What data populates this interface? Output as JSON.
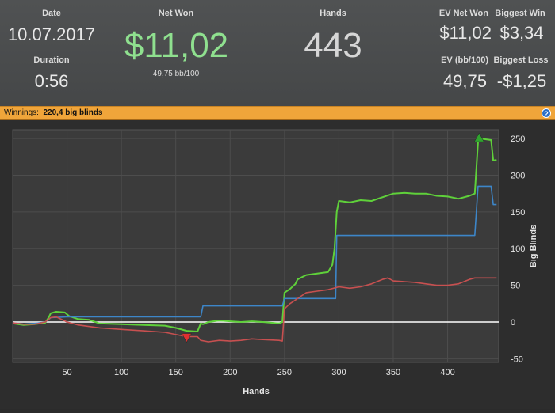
{
  "stats": {
    "date_label": "Date",
    "date_value": "10.07.2017",
    "duration_label": "Duration",
    "duration_value": "0:56",
    "net_won_label": "Net Won",
    "net_won_value": "$11,02",
    "bb100_value": "49,75 bb/100",
    "hands_label": "Hands",
    "hands_value": "443",
    "ev_net_won_label": "EV Net Won",
    "ev_net_won_value": "$11,02",
    "biggest_win_label": "Biggest Win",
    "biggest_win_value": "$3,34",
    "ev_bb100_label": "EV (bb/100)",
    "ev_bb100_value": "49,75",
    "biggest_loss_label": "Biggest Loss",
    "biggest_loss_value": "-$1,25",
    "net_won_color": "#8fe08f"
  },
  "bar": {
    "label": "Winnings:",
    "value": "220,4 big blinds",
    "help_glyph": "?",
    "help_icon": "help-icon"
  },
  "chart_data": {
    "type": "line",
    "xlabel": "Hands",
    "ylabel": "Big Blinds",
    "xlim": [
      0,
      447
    ],
    "ylim": [
      -55,
      262
    ],
    "x_ticks": [
      50,
      100,
      150,
      200,
      250,
      300,
      350,
      400
    ],
    "y_ticks": [
      -50,
      0,
      50,
      100,
      150,
      200,
      250
    ],
    "grid": true,
    "series": [
      {
        "color": "#5fd13a",
        "points": [
          [
            0,
            -2
          ],
          [
            10,
            -4
          ],
          [
            20,
            -3
          ],
          [
            30,
            -1
          ],
          [
            33,
            6
          ],
          [
            35,
            12
          ],
          [
            40,
            14
          ],
          [
            48,
            13
          ],
          [
            52,
            8
          ],
          [
            60,
            4
          ],
          [
            70,
            3
          ],
          [
            80,
            -2
          ],
          [
            100,
            -3
          ],
          [
            120,
            -4
          ],
          [
            140,
            -5
          ],
          [
            150,
            -8
          ],
          [
            160,
            -12
          ],
          [
            170,
            -13
          ],
          [
            173,
            -2
          ],
          [
            175,
            -3
          ],
          [
            180,
            0
          ],
          [
            190,
            2
          ],
          [
            200,
            1
          ],
          [
            210,
            0
          ],
          [
            220,
            1
          ],
          [
            230,
            0
          ],
          [
            245,
            -2
          ],
          [
            248,
            0
          ],
          [
            250,
            40
          ],
          [
            255,
            45
          ],
          [
            260,
            52
          ],
          [
            262,
            58
          ],
          [
            270,
            64
          ],
          [
            280,
            66
          ],
          [
            290,
            68
          ],
          [
            294,
            78
          ],
          [
            296,
            100
          ],
          [
            298,
            150
          ],
          [
            300,
            165
          ],
          [
            310,
            163
          ],
          [
            320,
            166
          ],
          [
            330,
            165
          ],
          [
            340,
            170
          ],
          [
            350,
            175
          ],
          [
            360,
            176
          ],
          [
            370,
            175
          ],
          [
            380,
            175
          ],
          [
            390,
            172
          ],
          [
            400,
            171
          ],
          [
            410,
            168
          ],
          [
            420,
            172
          ],
          [
            425,
            175
          ],
          [
            428,
            245
          ],
          [
            430,
            250
          ],
          [
            440,
            248
          ],
          [
            442,
            220
          ],
          [
            445,
            221
          ]
        ]
      },
      {
        "color": "#3d86c9",
        "points": [
          [
            0,
            -1
          ],
          [
            10,
            -3
          ],
          [
            20,
            -2
          ],
          [
            30,
            0
          ],
          [
            33,
            3
          ],
          [
            35,
            6
          ],
          [
            50,
            7
          ],
          [
            100,
            7
          ],
          [
            150,
            7
          ],
          [
            170,
            7
          ],
          [
            173,
            7
          ],
          [
            175,
            22
          ],
          [
            200,
            22
          ],
          [
            245,
            22
          ],
          [
            248,
            22
          ],
          [
            250,
            32
          ],
          [
            270,
            32
          ],
          [
            272,
            32
          ],
          [
            280,
            32
          ],
          [
            285,
            32
          ],
          [
            290,
            32
          ],
          [
            297,
            32
          ],
          [
            298,
            118
          ],
          [
            350,
            118
          ],
          [
            400,
            118
          ],
          [
            425,
            118
          ],
          [
            428,
            185
          ],
          [
            440,
            185
          ],
          [
            442,
            160
          ],
          [
            445,
            160
          ]
        ]
      },
      {
        "color": "#c75050",
        "points": [
          [
            0,
            -1
          ],
          [
            10,
            -3
          ],
          [
            20,
            -3
          ],
          [
            30,
            0
          ],
          [
            35,
            6
          ],
          [
            40,
            7
          ],
          [
            50,
            0
          ],
          [
            60,
            -4
          ],
          [
            80,
            -8
          ],
          [
            100,
            -10
          ],
          [
            120,
            -12
          ],
          [
            140,
            -14
          ],
          [
            160,
            -20
          ],
          [
            170,
            -20
          ],
          [
            173,
            -25
          ],
          [
            180,
            -27
          ],
          [
            190,
            -25
          ],
          [
            200,
            -26
          ],
          [
            210,
            -25
          ],
          [
            220,
            -23
          ],
          [
            230,
            -24
          ],
          [
            245,
            -25
          ],
          [
            248,
            -26
          ],
          [
            250,
            18
          ],
          [
            255,
            25
          ],
          [
            260,
            30
          ],
          [
            270,
            40
          ],
          [
            280,
            42
          ],
          [
            290,
            44
          ],
          [
            300,
            48
          ],
          [
            310,
            46
          ],
          [
            320,
            48
          ],
          [
            330,
            52
          ],
          [
            340,
            58
          ],
          [
            345,
            60
          ],
          [
            350,
            56
          ],
          [
            360,
            55
          ],
          [
            370,
            54
          ],
          [
            380,
            52
          ],
          [
            390,
            50
          ],
          [
            400,
            50
          ],
          [
            410,
            52
          ],
          [
            420,
            58
          ],
          [
            425,
            60
          ],
          [
            445,
            60
          ]
        ]
      }
    ],
    "markers": [
      {
        "type": "triangle-up",
        "x": 429,
        "y": 250,
        "color": "#2fa32f"
      },
      {
        "type": "triangle-down",
        "x": 160,
        "y": -20,
        "color": "#e03030"
      }
    ]
  }
}
